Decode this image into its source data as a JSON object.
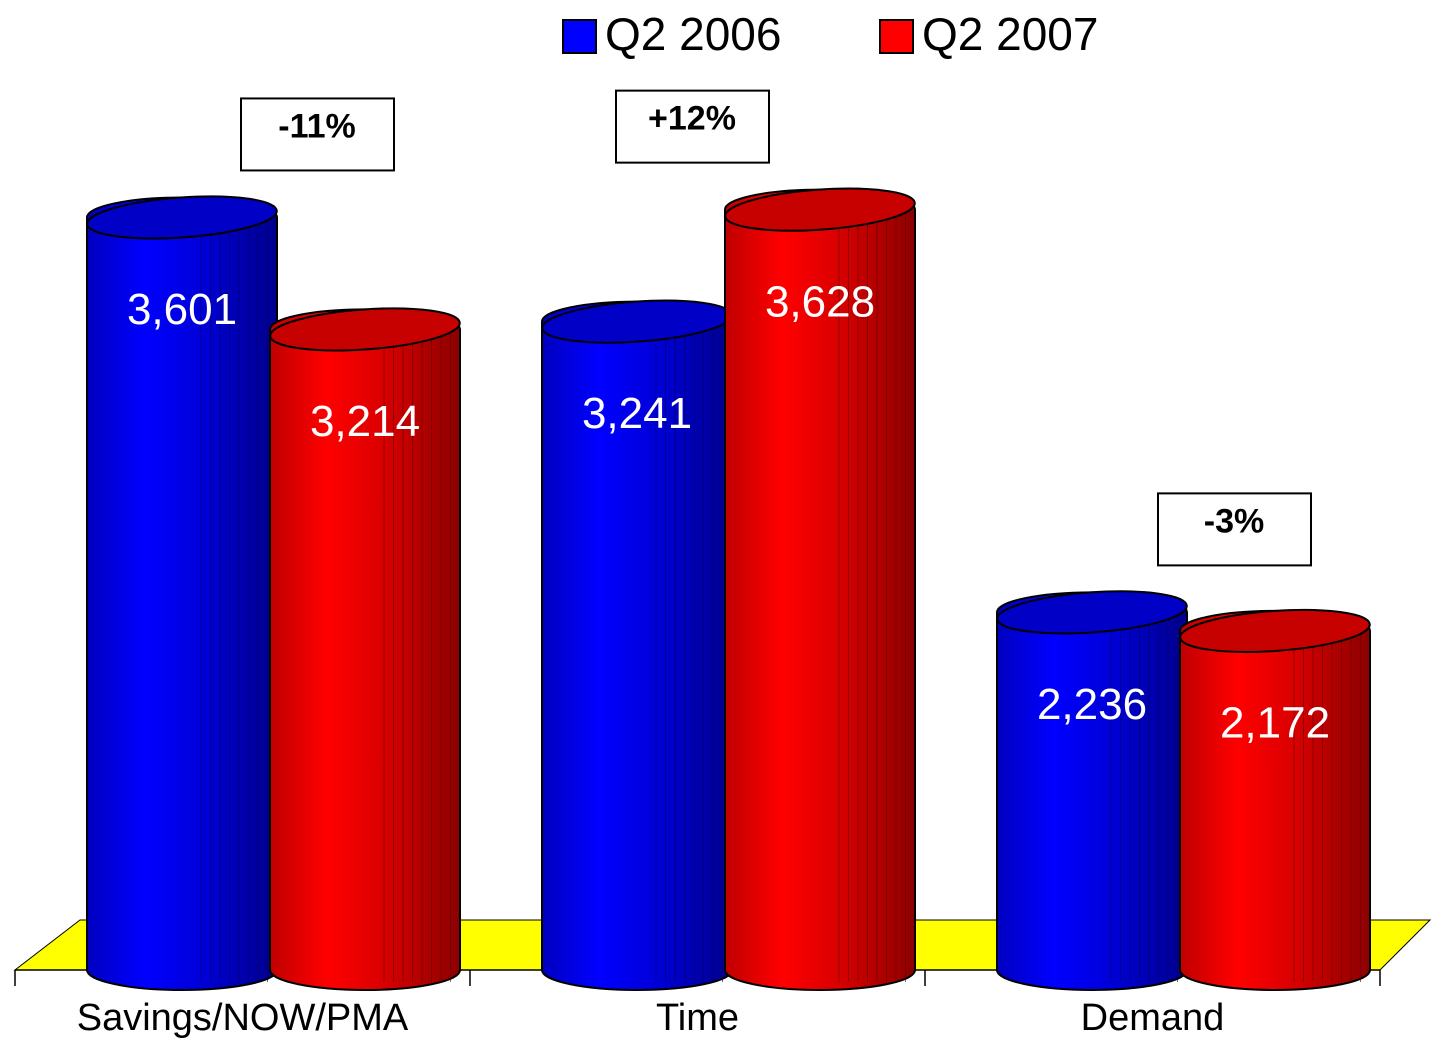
{
  "chart_data": {
    "type": "bar",
    "style": "3d-cylinder",
    "categories": [
      "Savings/NOW/PMA",
      "Time",
      "Demand"
    ],
    "series": [
      {
        "name": "Q2 2006",
        "color": "#0000ff",
        "values": [
          3601,
          3241,
          2236
        ],
        "value_labels": [
          "3,601",
          "3,241",
          "2,236"
        ]
      },
      {
        "name": "Q2 2007",
        "color": "#ff0000",
        "values": [
          3214,
          3628,
          2172
        ],
        "value_labels": [
          "3,214",
          "3,628",
          "2,172"
        ]
      }
    ],
    "annotations": [
      "-11%",
      "+12%",
      "-3%"
    ],
    "ylim": [
      1000,
      4000
    ],
    "floor_color": "#ffff00",
    "legend": "top"
  }
}
